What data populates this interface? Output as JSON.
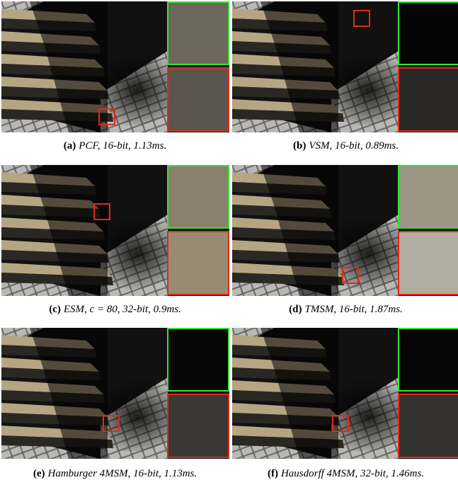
{
  "panels": [
    {
      "label": "(a)",
      "caption": "PCF, 16-bit, 1.13ms."
    },
    {
      "label": "(b)",
      "caption": "VSM, 16-bit, 0.89ms."
    },
    {
      "label": "(c)",
      "caption": "ESM, c = 80, 32-bit, 0.9ms."
    },
    {
      "label": "(d)",
      "caption": "TMSM, 16-bit, 1.87ms."
    },
    {
      "label": "(e)",
      "caption": "Hamburger 4MSM, 16-bit, 1.13ms."
    },
    {
      "label": "(f)",
      "caption": "Hausdorff 4MSM, 32-bit, 1.46ms."
    }
  ]
}
